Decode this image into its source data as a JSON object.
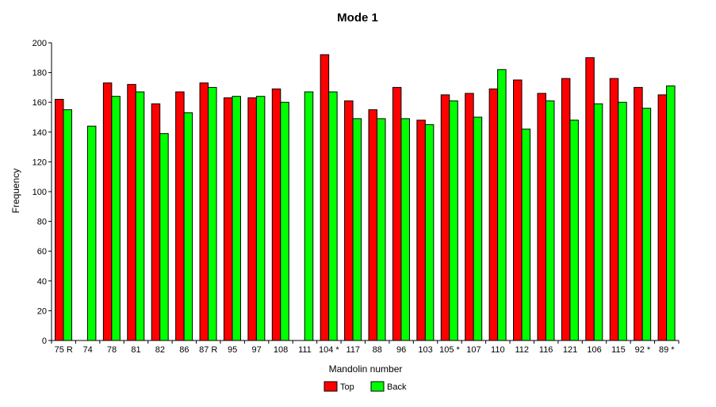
{
  "chart_data": {
    "type": "bar",
    "title": "Mode 1",
    "xlabel": "Mandolin number",
    "ylabel": "Frequency",
    "ylim": [
      0,
      200
    ],
    "yticks": [
      0,
      20,
      40,
      60,
      80,
      100,
      120,
      140,
      160,
      180,
      200
    ],
    "grid": false,
    "legend_position": "bottom",
    "categories": [
      "75 R",
      "74",
      "78",
      "81",
      "82",
      "86",
      "87 R",
      "95",
      "97",
      "108",
      "111",
      "104 *",
      "117",
      "88",
      "96",
      "103",
      "105 *",
      "107",
      "110",
      "112",
      "116",
      "121",
      "106",
      "115",
      "92 *",
      "89 *"
    ],
    "series": [
      {
        "name": "Top",
        "color": "#ff0000",
        "values": [
          162,
          null,
          173,
          172,
          159,
          167,
          173,
          163,
          163,
          169,
          null,
          192,
          161,
          155,
          170,
          148,
          165,
          166,
          169,
          175,
          166,
          176,
          190,
          176,
          170,
          165
        ]
      },
      {
        "name": "Back",
        "color": "#00ff00",
        "values": [
          155,
          144,
          164,
          167,
          139,
          153,
          170,
          164,
          164,
          160,
          167,
          167,
          149,
          149,
          149,
          145,
          161,
          150,
          182,
          142,
          161,
          148,
          159,
          160,
          156,
          171
        ]
      }
    ]
  }
}
